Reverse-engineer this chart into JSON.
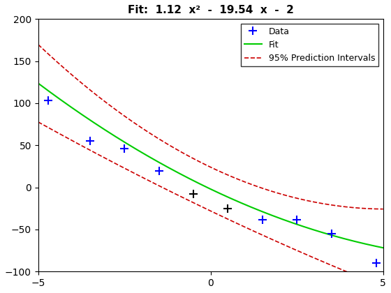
{
  "title": "Fit:  1.12  x²  -  19.54  x  -  2",
  "xlim": [
    -5,
    5
  ],
  "ylim": [
    -100,
    200
  ],
  "fit_coeffs": [
    1.12,
    -19.54,
    -2
  ],
  "pi_spread_base": 26,
  "pi_spread_quad": 0.8,
  "data_x": [
    -4.7,
    -3.5,
    -2.5,
    -1.5,
    -0.5,
    0.5,
    1.5,
    2.5,
    3.5,
    4.8
  ],
  "data_y": [
    103,
    55,
    46,
    20,
    -8,
    -25,
    -38,
    -38,
    -55,
    -90
  ],
  "data_color_blue": "#0000ff",
  "data_color_black": "#000000",
  "fit_color": "#00cc00",
  "pi_color": "#cc0000",
  "legend_loc": "upper right",
  "xticks": [
    -5,
    0,
    5
  ],
  "yticks": [
    -100,
    -50,
    0,
    50,
    100,
    150,
    200
  ],
  "title_fontsize": 11
}
